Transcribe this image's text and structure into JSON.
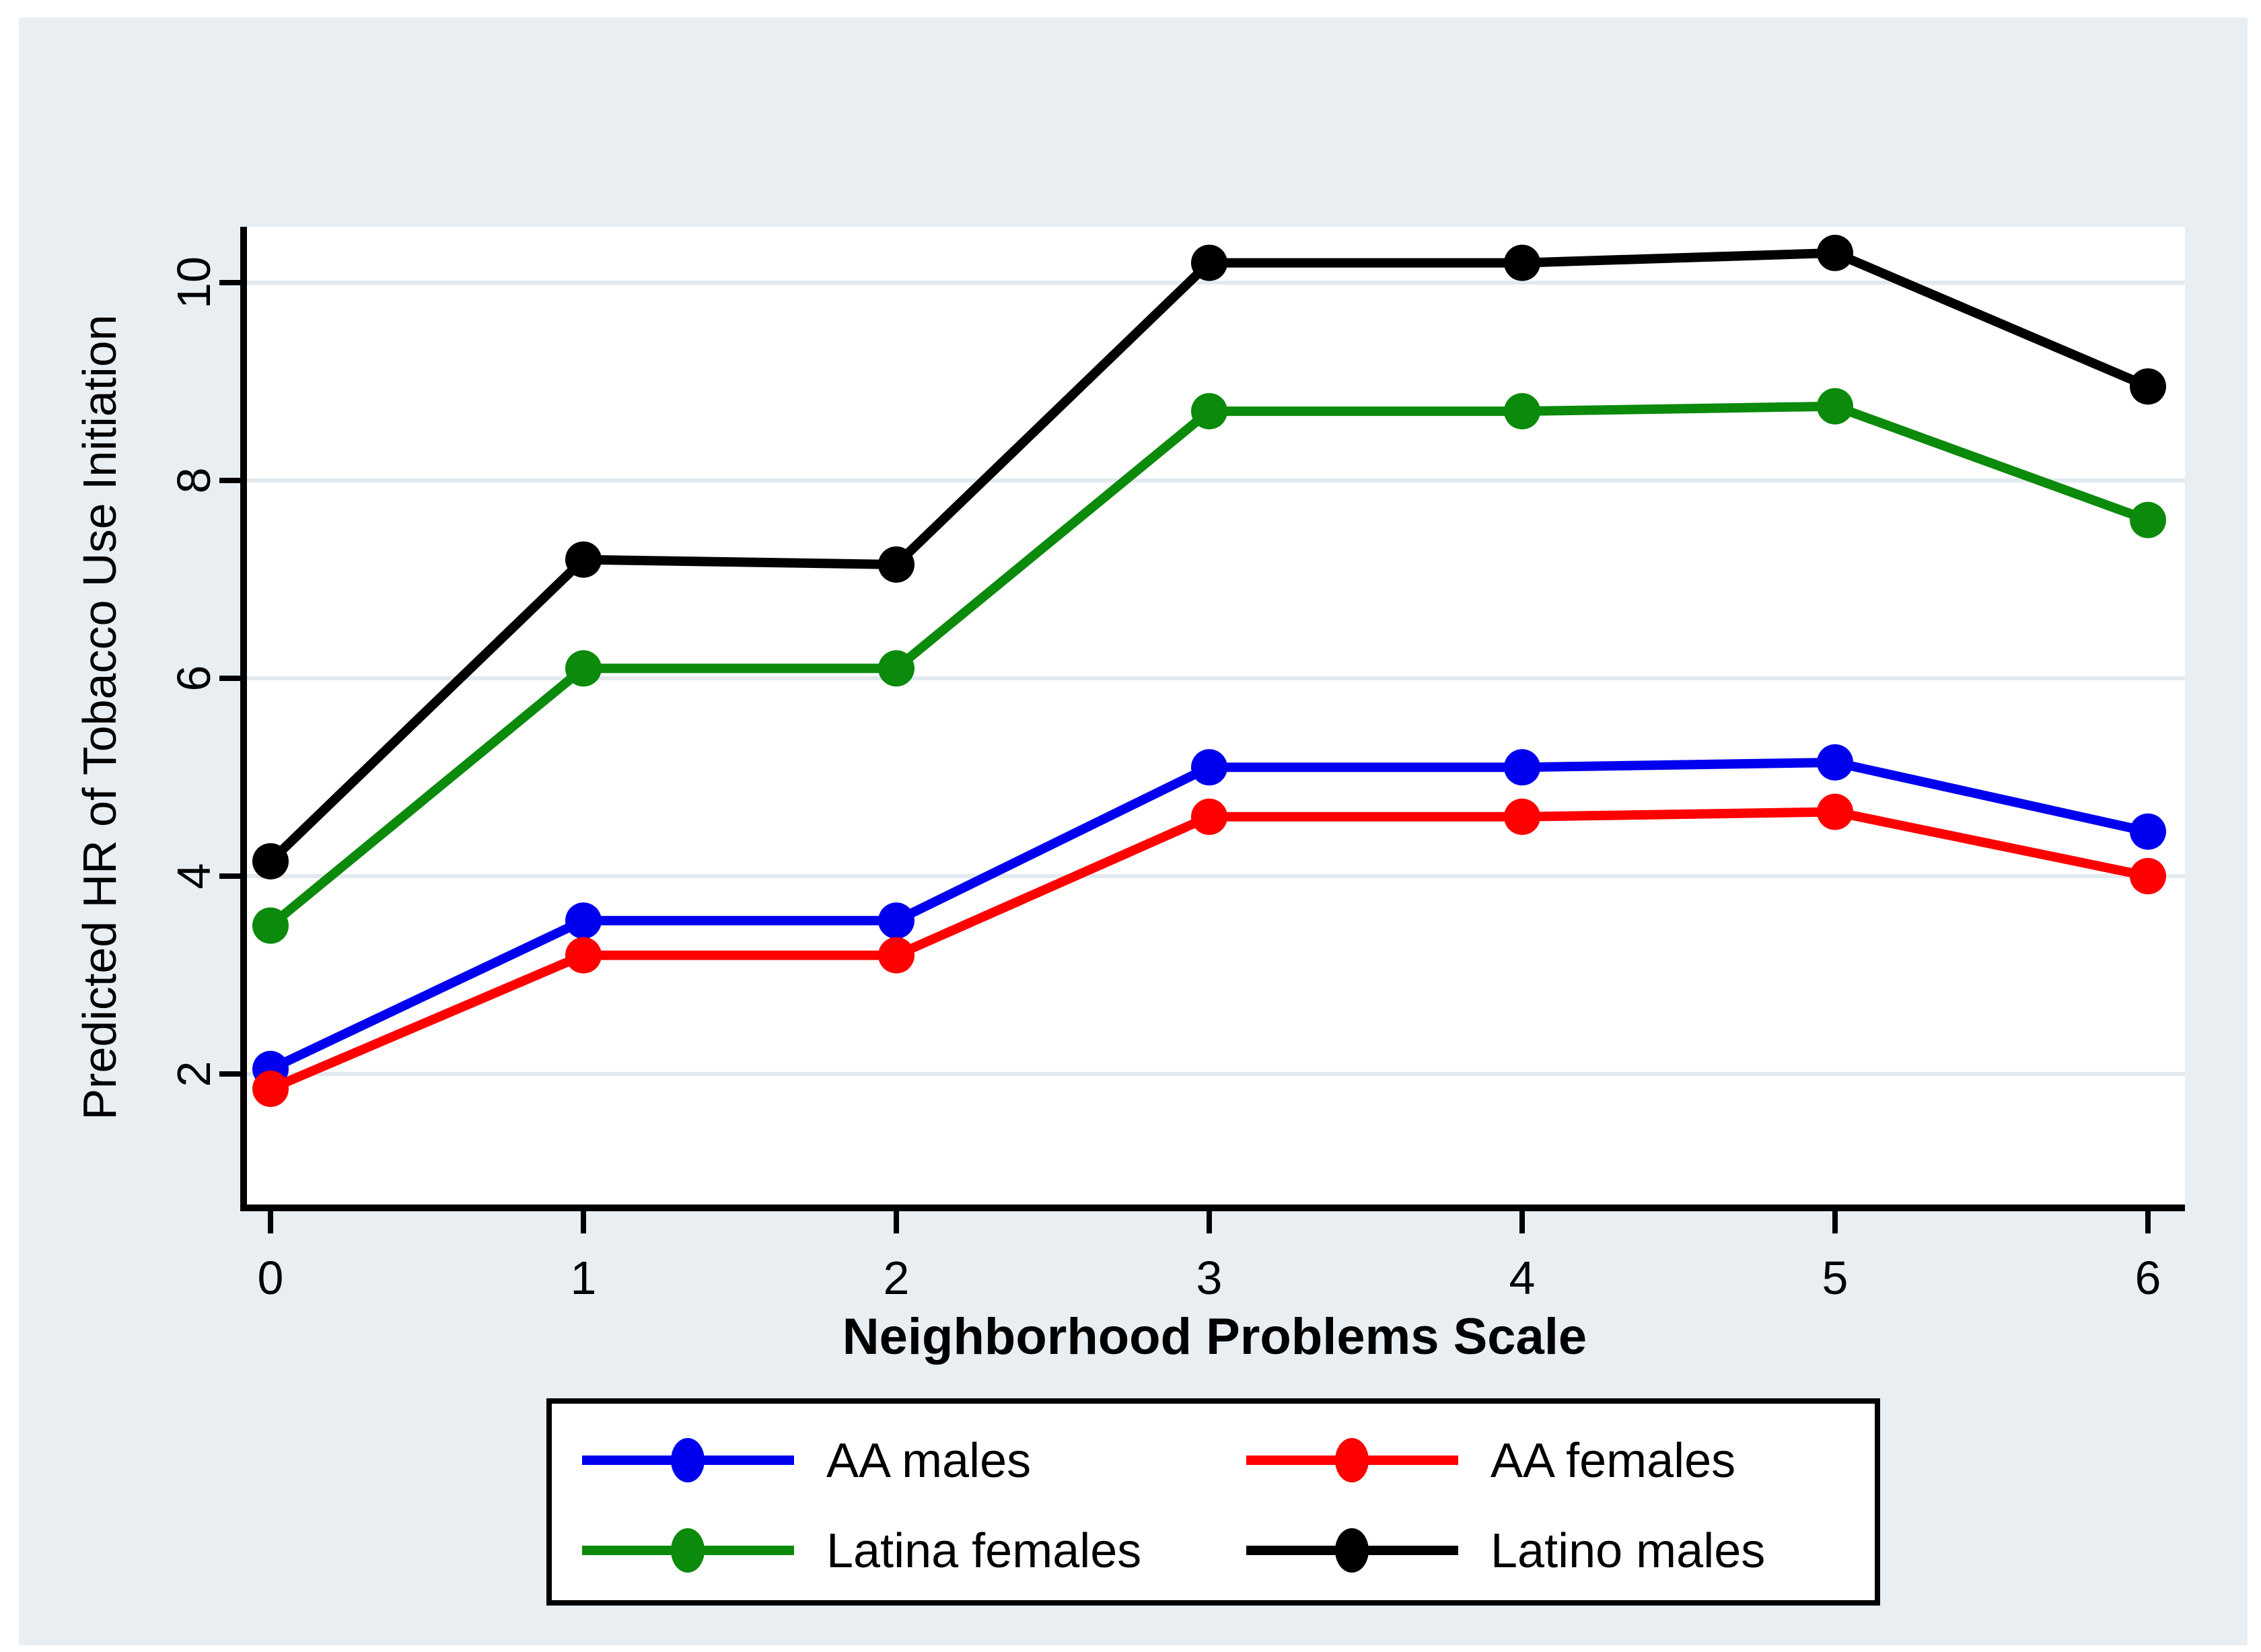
{
  "chart_data": {
    "type": "line",
    "title": "",
    "xlabel": "Neighborhood Problems Scale",
    "ylabel": "Predicted HR of Tobacco Use Initiation",
    "x": [
      0,
      1,
      2,
      3,
      4,
      5,
      6
    ],
    "x_tick_labels": [
      "0",
      "1",
      "2",
      "3",
      "4",
      "5",
      "6"
    ],
    "y_ticks": [
      2,
      4,
      6,
      8,
      10
    ],
    "ylim": [
      0.65,
      10.6
    ],
    "xlim": [
      -0.09,
      6.12
    ],
    "grid": "horizontal",
    "legend_position": "bottom-box",
    "series": [
      {
        "name": "AA males",
        "color": "#0000ee",
        "values": [
          2.05,
          3.55,
          3.55,
          5.1,
          5.1,
          5.15,
          4.45
        ]
      },
      {
        "name": "AA females",
        "color": "#fe0000",
        "values": [
          1.85,
          3.2,
          3.2,
          4.6,
          4.6,
          4.65,
          4.0
        ]
      },
      {
        "name": "Latina females",
        "color": "#0b8a0b",
        "values": [
          3.5,
          6.1,
          6.1,
          8.7,
          8.7,
          8.75,
          7.6
        ]
      },
      {
        "name": "Latino males",
        "color": "#000000",
        "values": [
          4.15,
          7.2,
          7.15,
          10.2,
          10.2,
          10.3,
          8.95
        ]
      }
    ],
    "legend_order": [
      "AA males",
      "AA females",
      "Latina females",
      "Latino males"
    ]
  },
  "colors": {
    "background": "#e9eef3",
    "plot_background": "#ffffff",
    "gridline": "#e2eaef",
    "axis": "#000000",
    "legend_border": "#000000",
    "legend_background": "#ffffff"
  }
}
